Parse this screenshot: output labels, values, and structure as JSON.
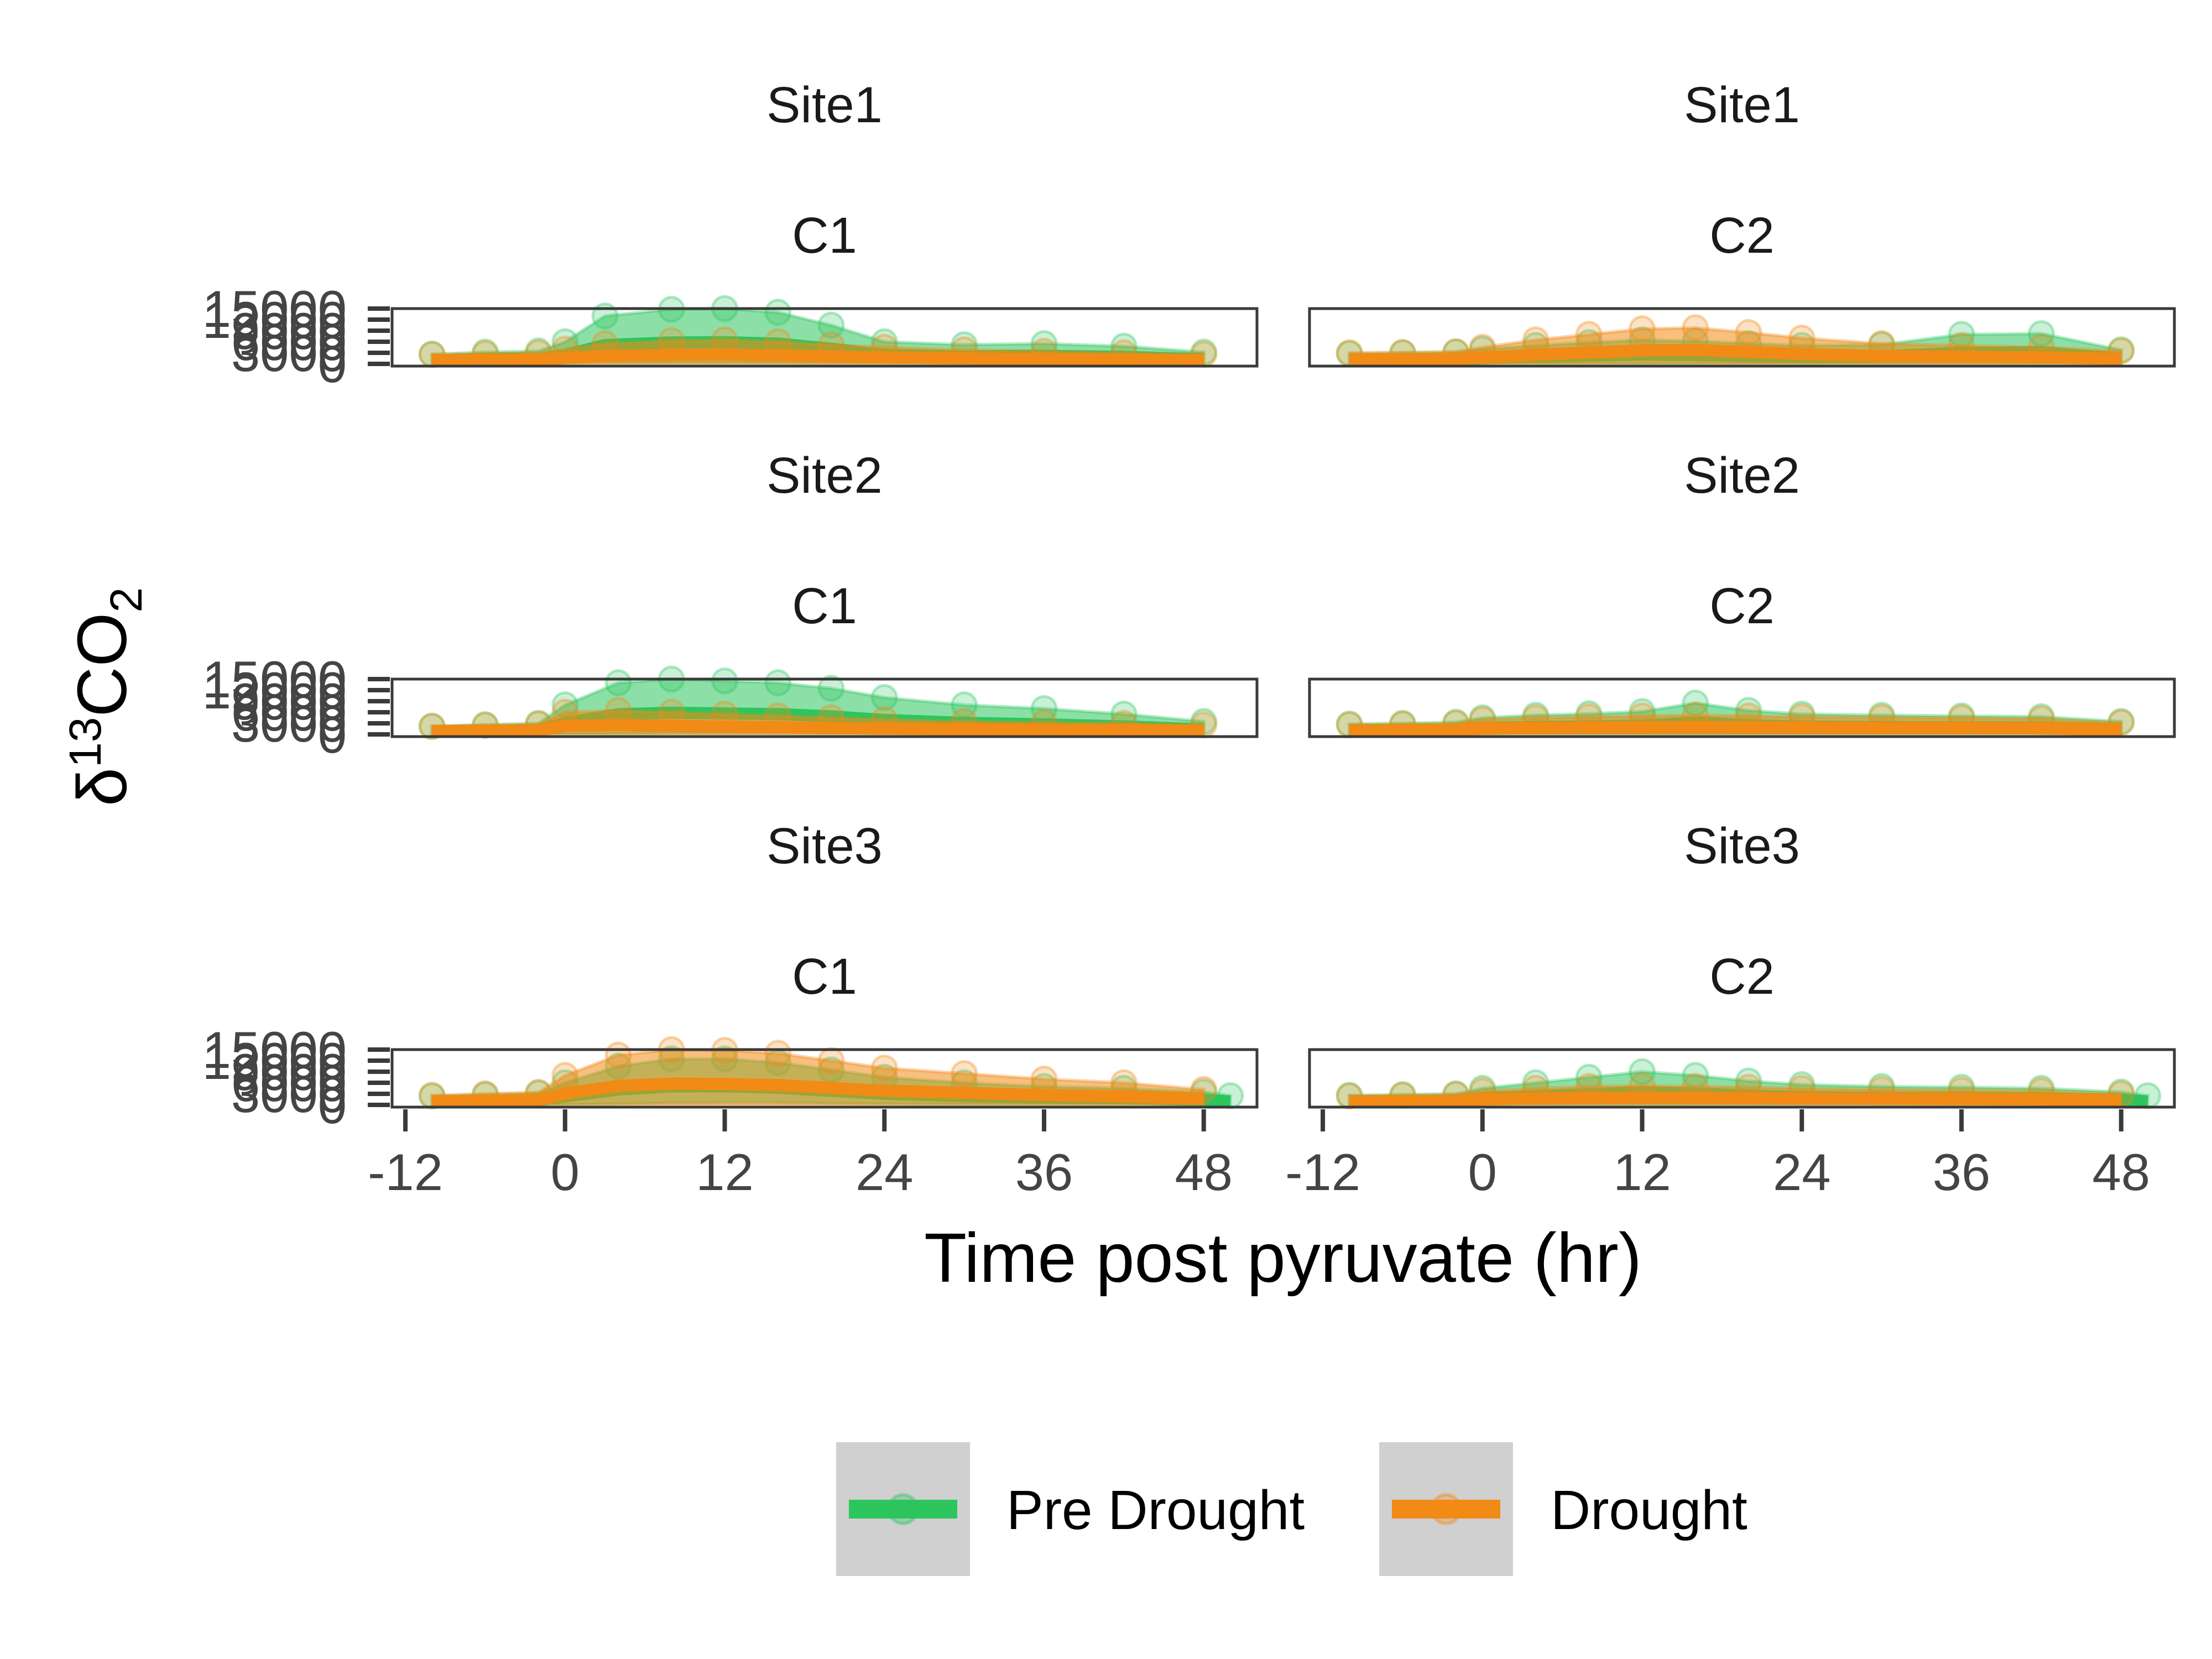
{
  "chart_data": {
    "type": "line",
    "xlabel": "Time post pyruvate (hr)",
    "ylabel": {
      "prefix": "δ",
      "sup": "13",
      "main": "CO",
      "sub": "2"
    },
    "x_ticks": [
      -12,
      0,
      12,
      24,
      36,
      48
    ],
    "x_tick_labels": [
      "-12",
      "0",
      "12",
      "24",
      "36",
      "48"
    ],
    "xlim": [
      -13,
      52
    ],
    "y_ticks": [
      0,
      3000,
      6000,
      9000,
      12000,
      15000
    ],
    "y_tick_labels": [
      "0",
      "3000",
      "6000",
      "9000",
      "12000",
      "15000"
    ],
    "ylim": [
      -600,
      15000
    ],
    "grid": false,
    "legend_position": "bottom",
    "colors": {
      "Pre Drought": "#2DC55E",
      "Drought": "#F28A16",
      "frame": "#3a3a3a",
      "legend_key_bg": "#d0d0d0"
    },
    "legend": [
      "Pre Drought",
      "Drought"
    ],
    "panels": [
      {
        "site": "Site1",
        "chamber": "C1",
        "series": [
          {
            "name": "Pre Drought",
            "x": [
              -10,
              -6,
              -2,
              0,
              3,
              8,
              12,
              16,
              20,
              24,
              30,
              36,
              42,
              48
            ],
            "lower": [
              0,
              100,
              150,
              200,
              300,
              300,
              300,
              300,
              200,
              200,
              200,
              200,
              150,
              100
            ],
            "upper": [
              2600,
              3200,
              3500,
              6000,
              13000,
              14800,
              15000,
              14000,
              10500,
              6000,
              5200,
              5500,
              4800,
              3200
            ]
          },
          {
            "name": "Drought",
            "x": [
              -10,
              -6,
              -2,
              0,
              3,
              8,
              12,
              16,
              20,
              24,
              30,
              36,
              42,
              48
            ],
            "lower": [
              0,
              0,
              0,
              0,
              50,
              50,
              50,
              50,
              0,
              0,
              0,
              0,
              0,
              0
            ],
            "upper": [
              2600,
              2800,
              3000,
              4000,
              5500,
              6300,
              6500,
              6000,
              5200,
              4500,
              3800,
              3400,
              3000,
              2600
            ]
          }
        ]
      },
      {
        "site": "Site1",
        "chamber": "C2",
        "series": [
          {
            "name": "Pre Drought",
            "x": [
              -10,
              -6,
              -2,
              0,
              4,
              8,
              12,
              16,
              20,
              24,
              30,
              36,
              42,
              48
            ],
            "lower": [
              0,
              0,
              0,
              0,
              0,
              0,
              0,
              0,
              0,
              0,
              0,
              0,
              0,
              0
            ],
            "upper": [
              2800,
              3000,
              3200,
              4000,
              5000,
              5800,
              6500,
              6200,
              5500,
              5000,
              5200,
              8000,
              8200,
              3800
            ]
          },
          {
            "name": "Drought",
            "x": [
              -10,
              -6,
              -2,
              0,
              4,
              8,
              12,
              16,
              20,
              24,
              30,
              36,
              42,
              48
            ],
            "lower": [
              0,
              0,
              0,
              0,
              0,
              0,
              0,
              0,
              0,
              0,
              0,
              0,
              0,
              0
            ],
            "upper": [
              3000,
              3100,
              3300,
              4500,
              6500,
              8000,
              9500,
              9800,
              8500,
              7000,
              5500,
              5000,
              4500,
              3500
            ]
          }
        ]
      },
      {
        "site": "Site2",
        "chamber": "C1",
        "series": [
          {
            "name": "Pre Drought",
            "x": [
              -10,
              -6,
              -2,
              0,
              4,
              8,
              12,
              16,
              20,
              24,
              30,
              36,
              42,
              48
            ],
            "lower": [
              0,
              0,
              0,
              0,
              200,
              300,
              300,
              300,
              200,
              200,
              150,
              100,
              100,
              0
            ],
            "upper": [
              2200,
              2600,
              3000,
              8000,
              14000,
              15000,
              14500,
              14000,
              12500,
              10000,
              8000,
              7000,
              5500,
              3500
            ]
          },
          {
            "name": "Drought",
            "x": [
              -10,
              -6,
              -2,
              0,
              4,
              8,
              12,
              16,
              20,
              24,
              30,
              36,
              42,
              48
            ],
            "lower": [
              0,
              0,
              0,
              0,
              0,
              0,
              0,
              0,
              0,
              0,
              0,
              0,
              0,
              0
            ],
            "upper": [
              2200,
              2500,
              2800,
              6000,
              6500,
              6000,
              5500,
              5000,
              4500,
              4000,
              3500,
              3200,
              3000,
              2600
            ]
          }
        ]
      },
      {
        "site": "Site2",
        "chamber": "C2",
        "series": [
          {
            "name": "Pre Drought",
            "x": [
              -10,
              -6,
              -2,
              0,
              4,
              8,
              12,
              16,
              20,
              24,
              30,
              36,
              42,
              48
            ],
            "lower": [
              0,
              0,
              0,
              0,
              0,
              0,
              0,
              0,
              0,
              0,
              0,
              0,
              0,
              0
            ],
            "upper": [
              2800,
              3000,
              3300,
              4500,
              5200,
              5600,
              6200,
              8500,
              6500,
              5500,
              5200,
              5000,
              4800,
              3500
            ]
          },
          {
            "name": "Drought",
            "x": [
              -10,
              -6,
              -2,
              0,
              4,
              8,
              12,
              16,
              20,
              24,
              30,
              36,
              42,
              48
            ],
            "lower": [
              0,
              0,
              0,
              0,
              0,
              0,
              0,
              0,
              0,
              0,
              0,
              0,
              0,
              0
            ],
            "upper": [
              2600,
              2800,
              3000,
              4000,
              4500,
              4800,
              5000,
              5200,
              5000,
              4800,
              4600,
              4500,
              4200,
              3200
            ]
          }
        ]
      },
      {
        "site": "Site3",
        "chamber": "C1",
        "series": [
          {
            "name": "Pre Drought",
            "x": [
              -10,
              -6,
              -2,
              0,
              4,
              8,
              12,
              16,
              20,
              24,
              30,
              36,
              42,
              48,
              50
            ],
            "lower": [
              0,
              0,
              0,
              0,
              300,
              500,
              600,
              600,
              400,
              300,
              200,
              200,
              100,
              0,
              0
            ],
            "upper": [
              2400,
              2800,
              3200,
              6000,
              10500,
              12500,
              12500,
              11500,
              9500,
              7500,
              6000,
              5000,
              4500,
              3500,
              2500
            ]
          },
          {
            "name": "Drought",
            "x": [
              -10,
              -6,
              -2,
              0,
              4,
              8,
              12,
              16,
              20,
              24,
              30,
              36,
              42,
              48
            ],
            "lower": [
              0,
              0,
              0,
              0,
              0,
              0,
              0,
              0,
              0,
              0,
              0,
              0,
              0,
              0
            ],
            "upper": [
              2600,
              3000,
              3400,
              8000,
              13500,
              15000,
              14800,
              14000,
              12000,
              10000,
              8500,
              7000,
              6000,
              4200
            ]
          }
        ]
      },
      {
        "site": "Site3",
        "chamber": "C2",
        "series": [
          {
            "name": "Pre Drought",
            "x": [
              -10,
              -6,
              -2,
              0,
              4,
              8,
              12,
              16,
              20,
              24,
              30,
              36,
              42,
              48,
              50
            ],
            "lower": [
              0,
              0,
              0,
              0,
              0,
              0,
              0,
              0,
              0,
              0,
              0,
              0,
              0,
              0,
              0
            ],
            "upper": [
              2600,
              2800,
              3000,
              4500,
              6000,
              7500,
              9000,
              8000,
              6500,
              5500,
              5000,
              4800,
              4500,
              3500,
              2500
            ]
          },
          {
            "name": "Drought",
            "x": [
              -10,
              -6,
              -2,
              0,
              4,
              8,
              12,
              16,
              20,
              24,
              30,
              36,
              42,
              48
            ],
            "lower": [
              0,
              0,
              0,
              0,
              0,
              0,
              0,
              0,
              0,
              0,
              0,
              0,
              0,
              0
            ],
            "upper": [
              2400,
              2600,
              2800,
              3800,
              4500,
              5000,
              5200,
              5000,
              4800,
              4500,
              4200,
              4000,
              3800,
              3000
            ]
          }
        ]
      }
    ]
  }
}
